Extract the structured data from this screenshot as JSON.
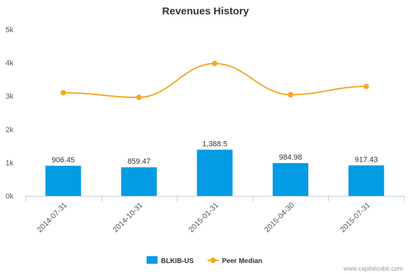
{
  "chart_data": {
    "type": "bar",
    "title": "Revenues History",
    "categories": [
      "2014-07-31",
      "2014-10-31",
      "2015-01-31",
      "2015-04-30",
      "2015-07-31"
    ],
    "series": [
      {
        "name": "BLKIB-US",
        "type": "bar",
        "color": "#049be5",
        "values": [
          906.45,
          859.47,
          1388.5,
          984.98,
          917.43
        ],
        "labels": [
          "906.45",
          "859.47",
          "1,388.5",
          "984.98",
          "917.43"
        ]
      },
      {
        "name": "Peer Median",
        "type": "line",
        "color": "#f5a623",
        "values": [
          3100,
          2960,
          3980,
          3040,
          3290
        ]
      }
    ],
    "ylim": [
      0,
      5000
    ],
    "yticks": [
      0,
      1000,
      2000,
      3000,
      4000,
      5000
    ],
    "ytick_labels": [
      "0k",
      "1k",
      "2k",
      "3k",
      "4k",
      "5k"
    ],
    "grid": false,
    "legend_position": "bottom-center"
  },
  "credit": "www.capitalcube.com"
}
